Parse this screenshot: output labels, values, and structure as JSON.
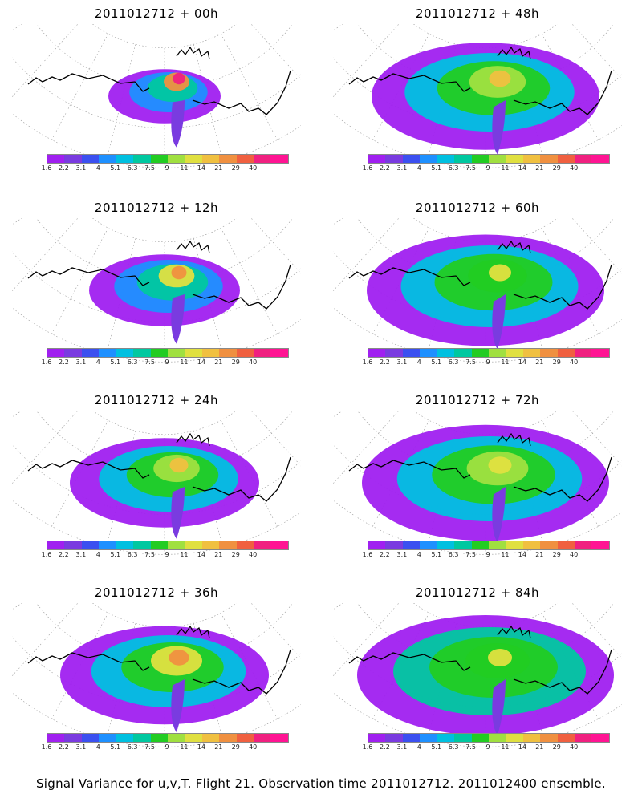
{
  "panels": [
    {
      "title": "2011012712 + 00h",
      "spread": 0.25,
      "peak": 0.95
    },
    {
      "title": "2011012712 + 48h",
      "spread": 0.85,
      "peak": 0.7
    },
    {
      "title": "2011012712 + 12h",
      "spread": 0.45,
      "peak": 0.75
    },
    {
      "title": "2011012712 + 60h",
      "spread": 0.9,
      "peak": 0.6
    },
    {
      "title": "2011012712 + 24h",
      "spread": 0.65,
      "peak": 0.72
    },
    {
      "title": "2011012712 + 72h",
      "spread": 0.95,
      "peak": 0.65
    },
    {
      "title": "2011012712 + 36h",
      "spread": 0.75,
      "peak": 0.75
    },
    {
      "title": "2011012712 + 84h",
      "spread": 1.0,
      "peak": 0.62
    }
  ],
  "colorbar": {
    "colors": [
      "#a020f0",
      "#7a3be0",
      "#3b50f0",
      "#1e90ff",
      "#00c0e0",
      "#00c8a0",
      "#22cc22",
      "#a0e040",
      "#e0e040",
      "#f0c040",
      "#f09040",
      "#f06040",
      "#f02080",
      "#ff1493"
    ],
    "ticks": [
      "1.6",
      "2.2",
      "3.1",
      "4",
      "5.1",
      "6.3",
      "7.5",
      "9",
      "11",
      "14",
      "21",
      "29",
      "40"
    ]
  },
  "caption": "Signal Variance for u,v,T. Flight 21. Observation time 2011012712. 2011012400 ensemble."
}
